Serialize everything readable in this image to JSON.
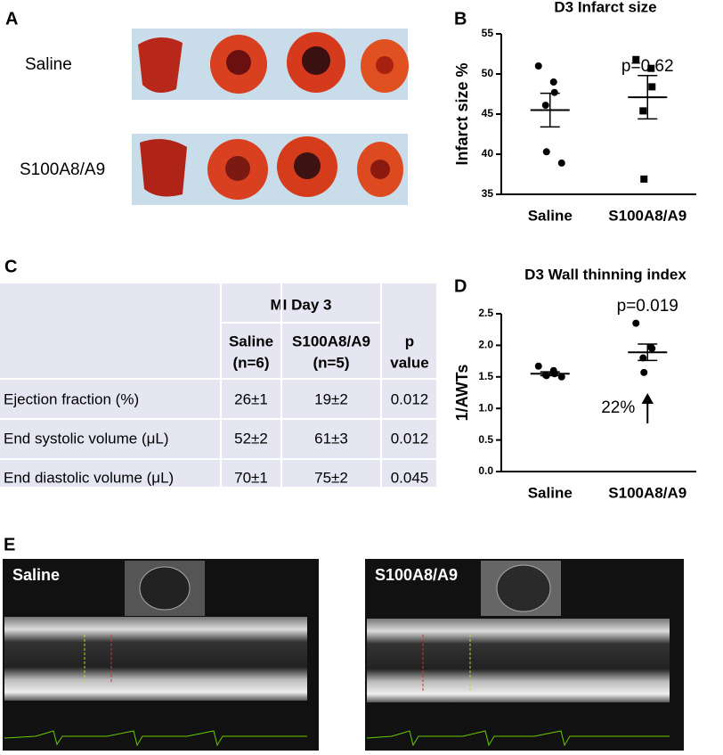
{
  "panels": {
    "a": {
      "letter": "A",
      "rows": [
        "Saline",
        "S100A8/A9"
      ]
    },
    "c": {
      "letter": "C"
    },
    "e": {
      "letter": "E",
      "images": [
        "Saline",
        "S100A8/A9"
      ]
    }
  },
  "chart_data": [
    {
      "type": "dot",
      "letter": "B",
      "title": "D3 Infarct size",
      "y_label": "Infarct size %",
      "annotation": "p=0.62",
      "categories": [
        "Saline",
        "S100A8/A9"
      ],
      "groups": [
        {
          "marker": "circle",
          "points": [
            51,
            49,
            47.7,
            46.1,
            40.3,
            38.9
          ],
          "mean": 45.5,
          "sem": 2.1
        },
        {
          "marker": "square",
          "points": [
            51.8,
            50.7,
            48.4,
            45.4,
            36.9
          ],
          "mean": 47.1,
          "sem": 2.7
        }
      ],
      "color": "#000000",
      "ylim": [
        35,
        55
      ],
      "yticks": [
        35,
        40,
        45,
        50,
        55
      ]
    },
    {
      "type": "dot",
      "letter": "D",
      "title": "D3 Wall thinning index",
      "y_label": "1/AWTs",
      "annotation": "p=0.019",
      "arrow_label": "22%",
      "categories": [
        "Saline",
        "S100A8/A9"
      ],
      "groups": [
        {
          "marker": "circle",
          "points": [
            1.67,
            1.6,
            1.55,
            1.53,
            1.52,
            1.5
          ],
          "mean": 1.55,
          "sem": 0.03
        },
        {
          "marker": "circle",
          "points": [
            2.35,
            1.97,
            1.95,
            1.8,
            1.57
          ],
          "mean": 1.89,
          "sem": 0.13
        }
      ],
      "color": "#000000",
      "ylim": [
        0,
        2.5
      ],
      "yticks": [
        {
          "value": 0,
          "label": "0.0"
        },
        0.5,
        {
          "value": 1,
          "label": "1.0"
        },
        1.5,
        {
          "value": 2,
          "label": "2.0"
        },
        2.5
      ]
    }
  ],
  "table": {
    "header": "MI Day 3",
    "columns": [
      [
        "Saline",
        "(n=6)"
      ],
      [
        "S100A8/A9",
        "(n=5)"
      ],
      [
        "p",
        "value"
      ]
    ],
    "rows": [
      [
        "Ejection fraction (%)",
        "26±1",
        "19±2",
        "0.012"
      ],
      [
        "End systolic volume (μL)",
        "52±2",
        "61±3",
        "0.012"
      ],
      [
        "End diastolic volume (μL)",
        "70±1",
        "75±2",
        "0.045"
      ]
    ]
  }
}
